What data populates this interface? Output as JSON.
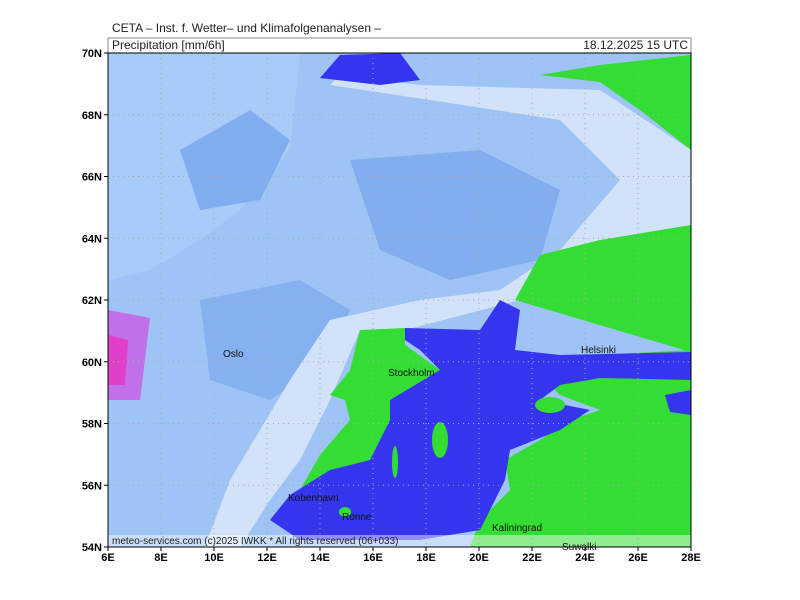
{
  "header": {
    "title": "CETA – Inst. f. Wetter– und Klimafolgenanalysen –",
    "field": "Precipitation [mm/6h]",
    "valid": "18.12.2025 15 UTC"
  },
  "map": {
    "lat_labels": [
      "70N",
      "68N",
      "66N",
      "64N",
      "62N",
      "60N",
      "58N",
      "56N",
      "54N"
    ],
    "lon_labels": [
      "6E",
      "8E",
      "10E",
      "12E",
      "14E",
      "16E",
      "18E",
      "20E",
      "22E",
      "24E",
      "26E",
      "28E"
    ],
    "cities": [
      {
        "label": "Oslo"
      },
      {
        "label": "Stockholm"
      },
      {
        "label": "Helsinki"
      },
      {
        "label": "Kobenhavn"
      },
      {
        "label": "Ronne"
      },
      {
        "label": "Kaliningrad"
      },
      {
        "label": "Suwalki"
      }
    ]
  },
  "footer": "meteo-services.com (c)2025 IWKK * All rights reserved (06+033)"
}
